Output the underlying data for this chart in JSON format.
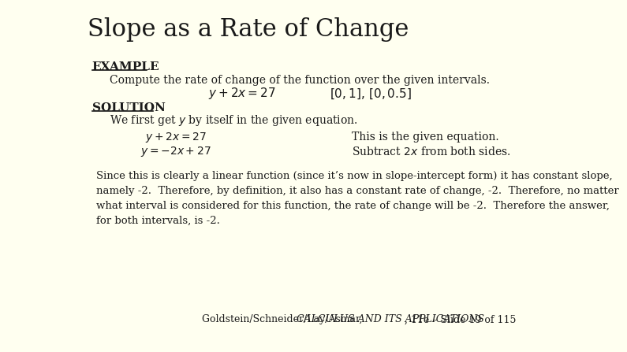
{
  "title": "Slope as a Rate of Change",
  "title_color": "#1a1a1a",
  "title_fontsize": 22,
  "bg_color": "#FFFFF0",
  "header_bar_color": "#8B0000",
  "footer_bar_color": "#8B0000",
  "example_label": "EXAMPLE",
  "example_text": "Compute the rate of change of the function over the given intervals.",
  "equation_problem": "$y + 2x = 27$",
  "intervals": "$[0, 1],\\,[0, 0.5]$",
  "solution_label": "SOLUTION",
  "solution_text": "We first get $y$ by itself in the given equation.",
  "eq1_left": "$y + 2x = 27$",
  "eq1_right": "This is the given equation.",
  "eq2_left": "$y = -2x + 27$",
  "eq2_right": "Subtract $2x$ from both sides.",
  "paragraph_lines": [
    "Since this is clearly a linear function (since it’s now in slope-intercept form) it has constant slope,",
    "namely -2.  Therefore, by definition, it also has a constant rate of change, -2.  Therefore, no matter",
    "what interval is considered for this function, the rate of change will be -2.  Therefore the answer,",
    "for both intervals, is -2."
  ],
  "footer_normal": "Goldstein/Schneider/Lay/Asmar, ",
  "footer_italic": "CALCULUS AND ITS APPLICATIONS",
  "footer_rest": ", 11e – Slide 19 of 115",
  "footer_color": "#1a1a1a",
  "footer_fontsize": 9
}
